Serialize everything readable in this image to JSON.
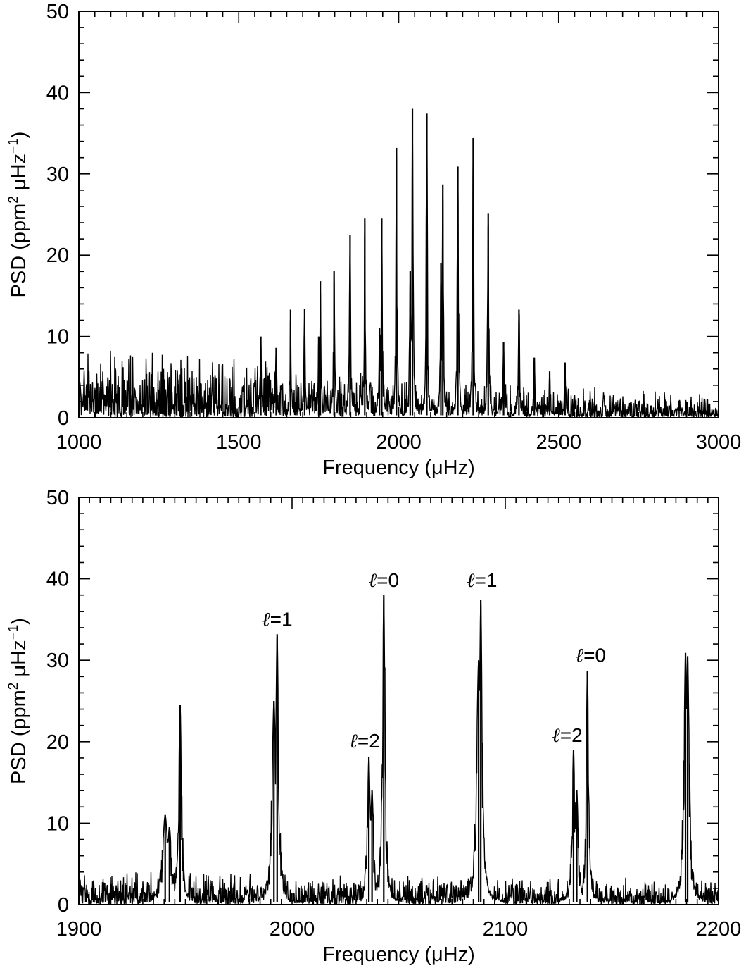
{
  "chart_data": [
    {
      "type": "line",
      "title": "",
      "xlabel": "Frequency (μHz)",
      "ylabel": {
        "prefix": "PSD (ppm",
        "sup1": "2",
        "mid": " μHz",
        "sup2": "−1",
        "suffix": ")"
      },
      "xlim": [
        1000,
        3000
      ],
      "ylim": [
        0,
        50
      ],
      "x_ticks": [
        1000,
        1500,
        2000,
        2500,
        3000
      ],
      "x_tick_labels": [
        "1000",
        "1500",
        "2000",
        "2500",
        "3000"
      ],
      "y_ticks": [
        0,
        10,
        20,
        30,
        40,
        50
      ],
      "y_tick_labels": [
        "0",
        "10",
        "20",
        "30",
        "40",
        "50"
      ],
      "x_minor_step": 50,
      "y_minor_step": 2,
      "grid": false,
      "noise_background": {
        "x": [
          1000,
          1500,
          2000,
          2500,
          3000
        ],
        "mean": [
          3.3,
          2.8,
          2.0,
          1.5,
          1.0
        ],
        "spread": [
          6.0,
          4.5,
          3.5,
          2.5,
          2.0
        ]
      },
      "series": [
        {
          "peaks": [
            {
              "x": 1569,
              "y": 10.0
            },
            {
              "x": 1617,
              "y": 8.6
            },
            {
              "x": 1662,
              "y": 13.3
            },
            {
              "x": 1706,
              "y": 13.4
            },
            {
              "x": 1750,
              "y": 10.0
            },
            {
              "x": 1755,
              "y": 16.8
            },
            {
              "x": 1798,
              "y": 18.1
            },
            {
              "x": 1848,
              "y": 22.5
            },
            {
              "x": 1894,
              "y": 24.5
            },
            {
              "x": 1940,
              "y": 11.0
            },
            {
              "x": 1947,
              "y": 24.5
            },
            {
              "x": 1993,
              "y": 33.2
            },
            {
              "x": 2036,
              "y": 18.1
            },
            {
              "x": 2043,
              "y": 38.0
            },
            {
              "x": 2088,
              "y": 37.4
            },
            {
              "x": 2132,
              "y": 19.0
            },
            {
              "x": 2138,
              "y": 28.7
            },
            {
              "x": 2185,
              "y": 30.9
            },
            {
              "x": 2233,
              "y": 34.4
            },
            {
              "x": 2280,
              "y": 25.1
            },
            {
              "x": 2328,
              "y": 9.3
            },
            {
              "x": 2376,
              "y": 13.3
            },
            {
              "x": 2424,
              "y": 7.4
            },
            {
              "x": 2472,
              "y": 5.7
            },
            {
              "x": 2520,
              "y": 6.8
            }
          ]
        }
      ]
    },
    {
      "type": "line",
      "title": "",
      "xlabel": "Frequency (μHz)",
      "ylabel": {
        "prefix": "PSD (ppm",
        "sup1": "2",
        "mid": " μHz",
        "sup2": "−1",
        "suffix": ")"
      },
      "xlim": [
        1900,
        2200
      ],
      "ylim": [
        0,
        50
      ],
      "x_ticks": [
        1900,
        2000,
        2100,
        2200
      ],
      "x_tick_labels": [
        "1900",
        "2000",
        "2100",
        "2200"
      ],
      "y_ticks": [
        0,
        10,
        20,
        30,
        40,
        50
      ],
      "y_tick_labels": [
        "0",
        "10",
        "20",
        "30",
        "40",
        "50"
      ],
      "x_minor_step": 5,
      "y_minor_step": 2,
      "grid": false,
      "noise_background": {
        "x": [
          1900,
          2200
        ],
        "mean": [
          1.6,
          1.2
        ],
        "spread": [
          2.5,
          2.0
        ]
      },
      "series": [
        {
          "peaks": [
            {
              "x": 1940.5,
              "y": 11.0,
              "w": 1.5
            },
            {
              "x": 1942.5,
              "y": 9.5,
              "w": 1.2
            },
            {
              "x": 1947.5,
              "y": 24.5,
              "w": 0.8
            },
            {
              "x": 1991.5,
              "y": 25.0,
              "w": 1.1
            },
            {
              "x": 1993.0,
              "y": 33.2,
              "w": 0.8
            },
            {
              "x": 2036.0,
              "y": 18.1,
              "w": 0.8
            },
            {
              "x": 2037.5,
              "y": 14.0,
              "w": 0.9
            },
            {
              "x": 2043.0,
              "y": 38.0,
              "w": 0.7
            },
            {
              "x": 2087.5,
              "y": 30.0,
              "w": 1.2
            },
            {
              "x": 2088.5,
              "y": 37.4,
              "w": 0.8
            },
            {
              "x": 2132.0,
              "y": 19.0,
              "w": 0.8
            },
            {
              "x": 2133.5,
              "y": 14.0,
              "w": 0.9
            },
            {
              "x": 2138.5,
              "y": 28.7,
              "w": 0.7
            },
            {
              "x": 2184.5,
              "y": 30.9,
              "w": 0.9
            },
            {
              "x": 2185.5,
              "y": 30.5,
              "w": 0.9
            }
          ]
        }
      ],
      "annotations": [
        {
          "sym": "ℓ",
          "text": "=1",
          "x": 1993,
          "y": 34.2
        },
        {
          "sym": "ℓ",
          "text": "=2",
          "x": 2034,
          "y": 19.3
        },
        {
          "sym": "ℓ",
          "text": "=0",
          "x": 2043,
          "y": 39.0
        },
        {
          "sym": "ℓ",
          "text": "=1",
          "x": 2089,
          "y": 39.0
        },
        {
          "sym": "ℓ",
          "text": "=2",
          "x": 2129,
          "y": 20.0
        },
        {
          "sym": "ℓ",
          "text": "=0",
          "x": 2140,
          "y": 29.8
        }
      ]
    }
  ]
}
